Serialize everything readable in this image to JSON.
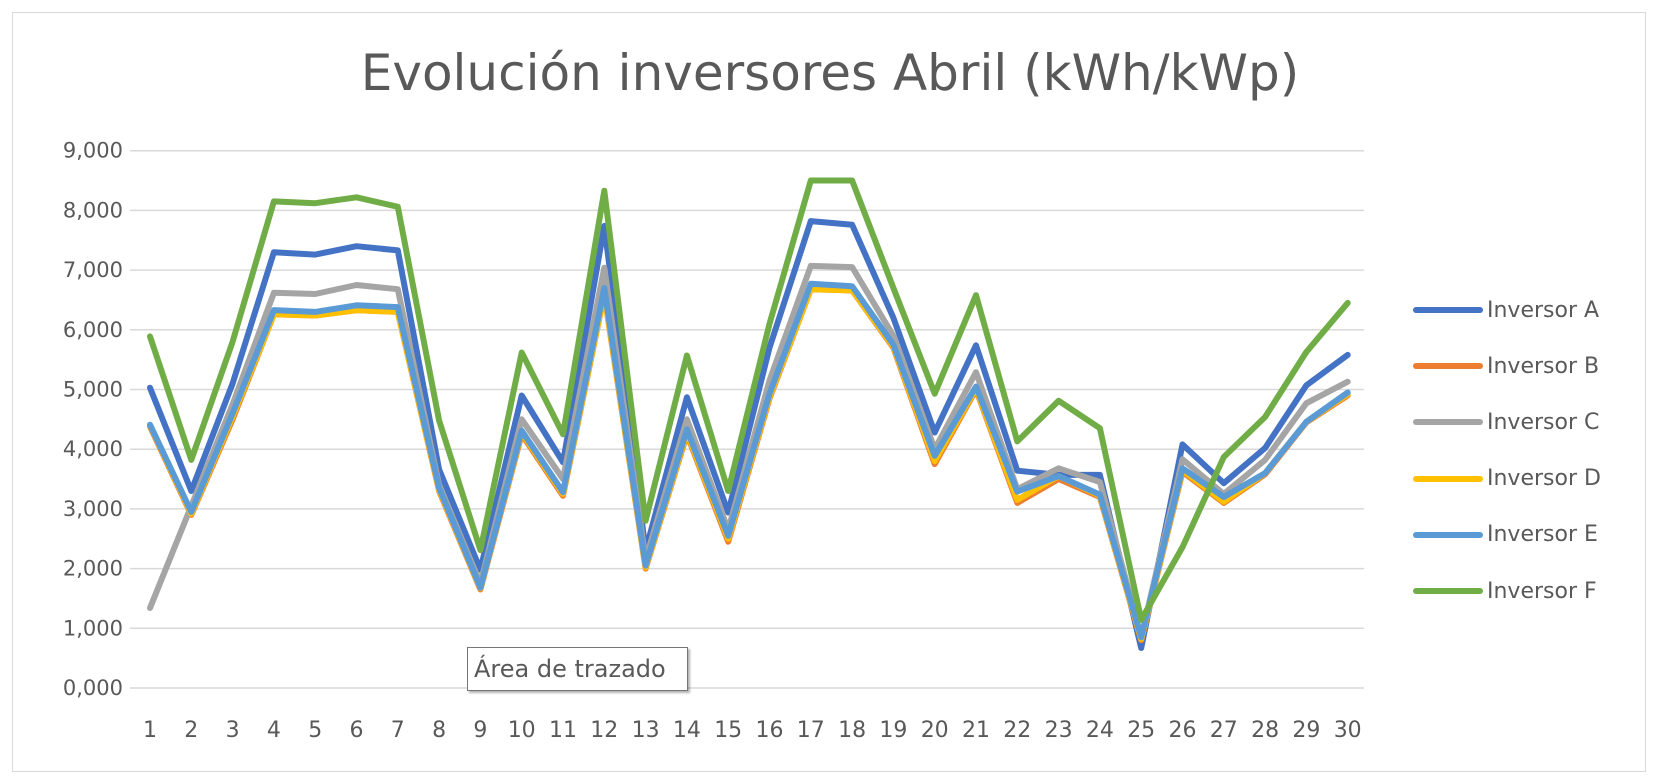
{
  "chart": {
    "title": "Evolución inversores Abril (kWh/kWp)",
    "tooltip": "Área de trazado",
    "y_ticks": [
      "0,000",
      "1,000",
      "2,000",
      "3,000",
      "4,000",
      "5,000",
      "6,000",
      "7,000",
      "8,000",
      "9,000"
    ],
    "x_ticks": [
      "1",
      "2",
      "3",
      "4",
      "5",
      "6",
      "7",
      "8",
      "9",
      "10",
      "11",
      "12",
      "13",
      "14",
      "15",
      "16",
      "17",
      "18",
      "19",
      "20",
      "21",
      "22",
      "23",
      "24",
      "25",
      "26",
      "27",
      "28",
      "29",
      "30"
    ],
    "legend": [
      {
        "label": "Inversor A",
        "color": "#4472C4"
      },
      {
        "label": "Inversor B",
        "color": "#ED7D31"
      },
      {
        "label": "Inversor C",
        "color": "#A5A5A5"
      },
      {
        "label": "Inversor D",
        "color": "#FFC000"
      },
      {
        "label": "Inversor E",
        "color": "#5B9BD5"
      },
      {
        "label": "Inversor F",
        "color": "#70AD47"
      }
    ]
  },
  "chart_data": {
    "type": "line",
    "title": "Evolución inversores Abril (kWh/kWp)",
    "xlabel": "",
    "ylabel": "",
    "ylim": [
      0,
      9
    ],
    "grid": true,
    "legend_position": "right",
    "x": [
      1,
      2,
      3,
      4,
      5,
      6,
      7,
      8,
      9,
      10,
      11,
      12,
      13,
      14,
      15,
      16,
      17,
      18,
      19,
      20,
      21,
      22,
      23,
      24,
      25,
      26,
      27,
      28,
      29,
      30
    ],
    "series": [
      {
        "name": "Inversor A",
        "color": "#4472C4",
        "values": [
          5.03,
          3.3,
          5.1,
          7.3,
          7.26,
          7.4,
          7.33,
          3.66,
          1.98,
          4.9,
          3.78,
          7.74,
          2.3,
          4.87,
          2.94,
          5.7,
          7.82,
          7.76,
          6.2,
          4.28,
          5.74,
          3.64,
          3.57,
          3.57,
          0.67,
          4.08,
          3.43,
          4.02,
          5.07,
          5.58
        ]
      },
      {
        "name": "Inversor B",
        "color": "#ED7D31",
        "values": [
          4.38,
          2.9,
          4.5,
          6.26,
          6.24,
          6.33,
          6.3,
          3.3,
          1.65,
          4.25,
          3.22,
          6.6,
          2.0,
          4.25,
          2.45,
          4.85,
          6.68,
          6.66,
          5.7,
          3.75,
          5.0,
          3.1,
          3.5,
          3.2,
          0.8,
          3.62,
          3.1,
          3.58,
          4.45,
          4.9
        ]
      },
      {
        "name": "Inversor C",
        "color": "#A5A5A5",
        "values": [
          1.34,
          3.05,
          4.75,
          6.62,
          6.6,
          6.75,
          6.68,
          3.4,
          1.75,
          4.5,
          3.5,
          7.04,
          2.15,
          4.5,
          2.65,
          5.15,
          7.07,
          7.05,
          5.9,
          4.0,
          5.29,
          3.33,
          3.68,
          3.45,
          0.85,
          3.83,
          3.25,
          3.82,
          4.77,
          5.13
        ]
      },
      {
        "name": "Inversor D",
        "color": "#FFC000",
        "values": [
          4.4,
          2.92,
          4.55,
          6.26,
          6.24,
          6.33,
          6.3,
          3.32,
          1.67,
          4.28,
          3.25,
          6.62,
          2.02,
          4.28,
          2.5,
          4.88,
          6.68,
          6.66,
          5.72,
          3.8,
          5.02,
          3.15,
          3.55,
          3.22,
          0.82,
          3.65,
          3.12,
          3.6,
          4.46,
          4.92
        ]
      },
      {
        "name": "Inversor E",
        "color": "#5B9BD5",
        "values": [
          4.41,
          2.95,
          4.6,
          6.33,
          6.3,
          6.41,
          6.38,
          3.35,
          1.68,
          4.31,
          3.28,
          6.7,
          2.05,
          4.33,
          2.55,
          4.93,
          6.77,
          6.73,
          5.75,
          3.89,
          5.05,
          3.29,
          3.55,
          3.24,
          0.85,
          3.68,
          3.2,
          3.6,
          4.46,
          4.95
        ]
      },
      {
        "name": "Inversor F",
        "color": "#70AD47",
        "values": [
          5.89,
          3.82,
          5.8,
          8.15,
          8.12,
          8.22,
          8.06,
          4.48,
          2.31,
          5.62,
          4.25,
          8.33,
          2.8,
          5.57,
          3.3,
          6.1,
          8.5,
          8.5,
          6.7,
          4.93,
          6.58,
          4.13,
          4.81,
          4.35,
          1.14,
          2.36,
          3.87,
          4.54,
          5.63,
          6.45
        ]
      }
    ]
  }
}
